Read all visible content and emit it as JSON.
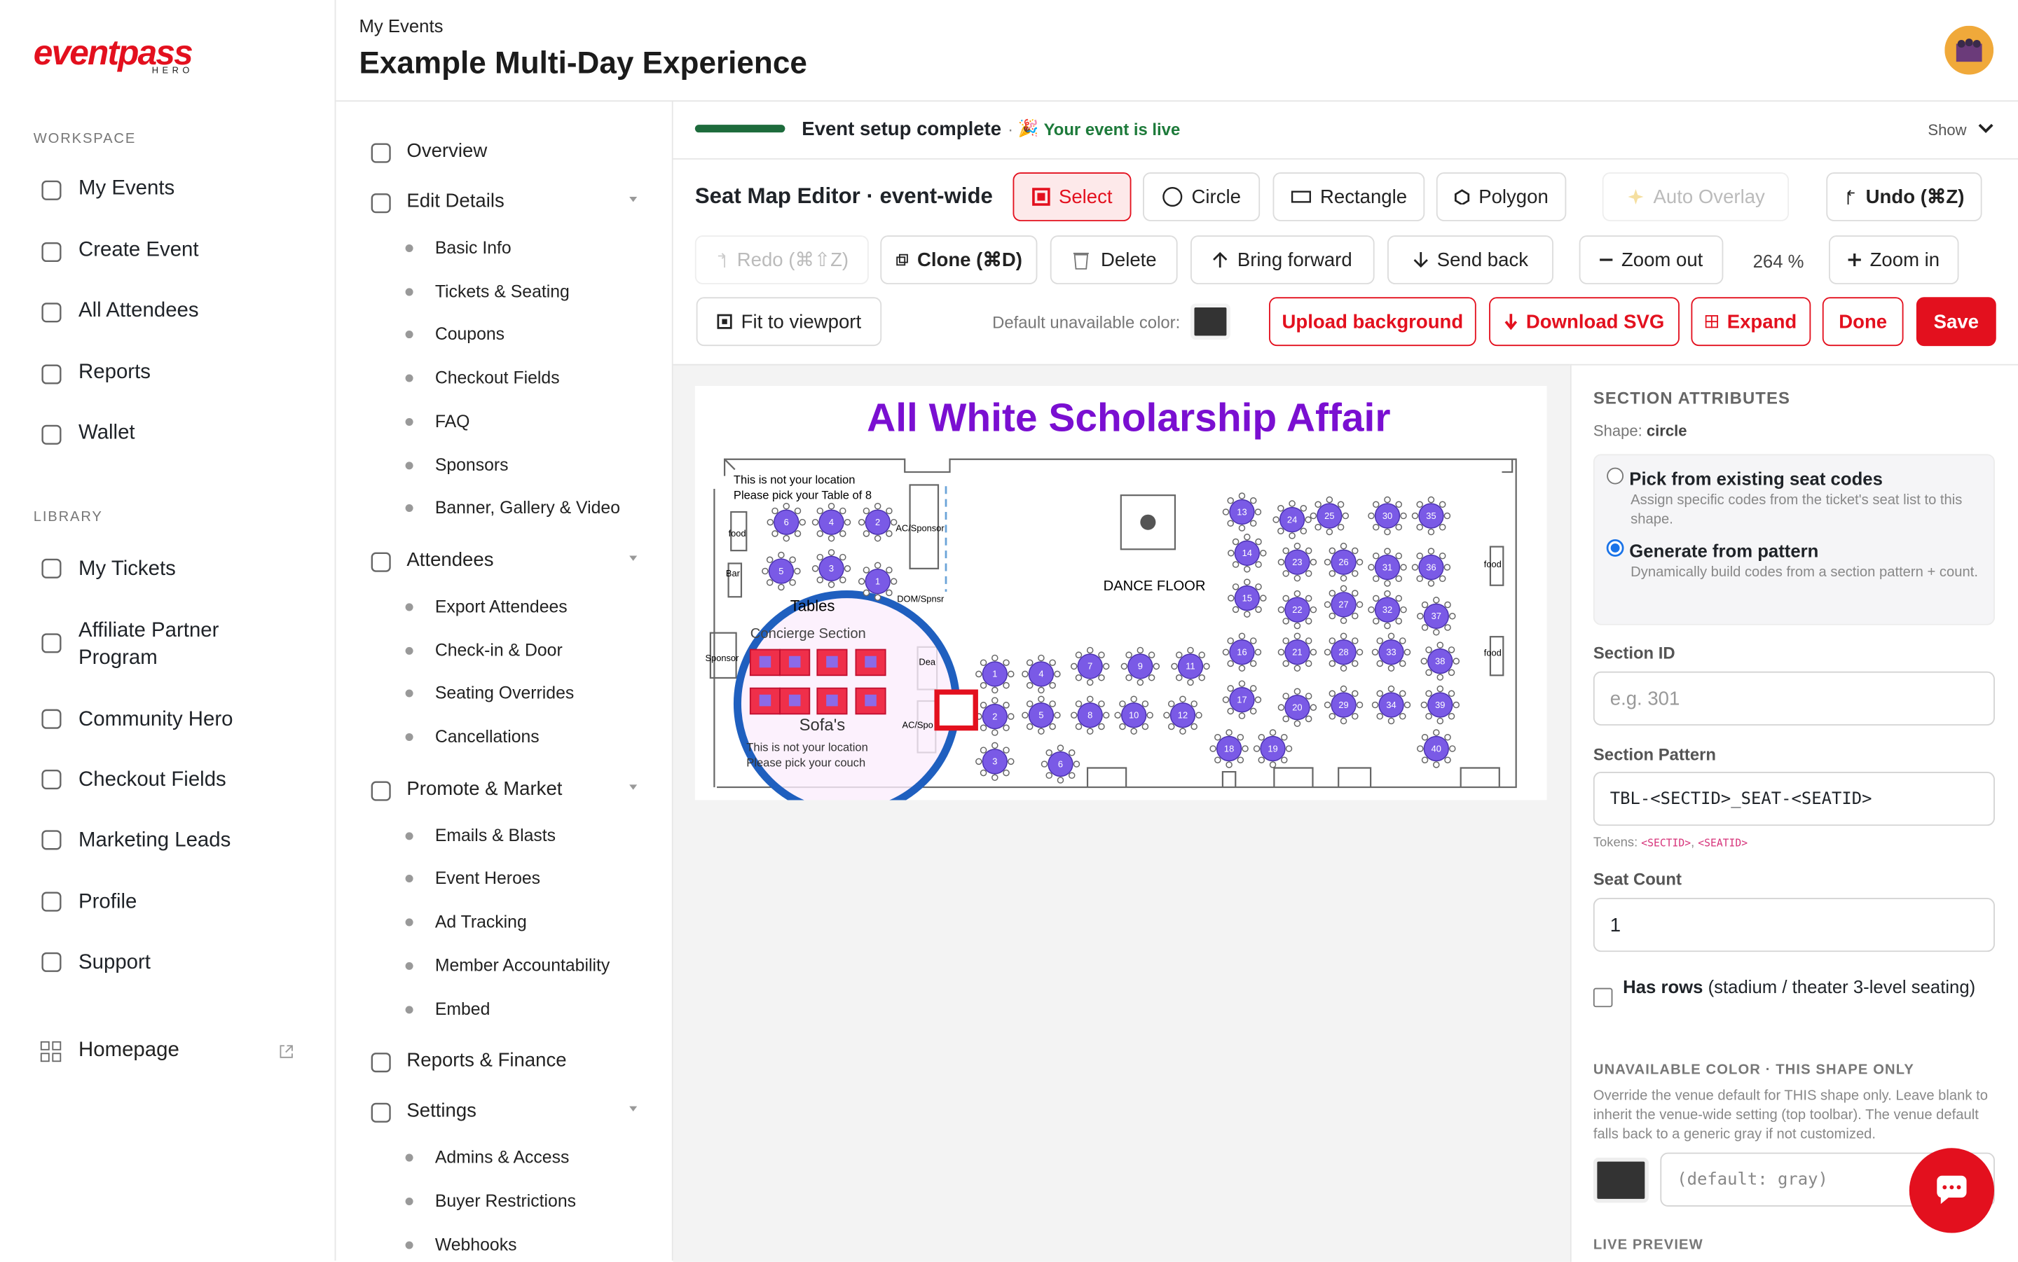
{
  "sidebar": {
    "logo": "eventpass",
    "logo_sub": "HERO",
    "workspace_label": "WORKSPACE",
    "workspace": [
      "My Events",
      "Create Event",
      "All Attendees",
      "Reports",
      "Wallet"
    ],
    "library_label": "LIBRARY",
    "library": [
      "My Tickets",
      "Affiliate Partner Program",
      "Community Hero",
      "Checkout Fields",
      "Marketing Leads",
      "Profile",
      "Support"
    ],
    "homepage": "Homepage"
  },
  "header": {
    "breadcrumb": "My Events",
    "title": "Example Multi-Day Experience"
  },
  "subnav": [
    {
      "label": "Overview",
      "items": []
    },
    {
      "label": "Edit Details",
      "items": [
        "Basic Info",
        "Tickets & Seating",
        "Coupons",
        "Checkout Fields",
        "FAQ",
        "Sponsors",
        "Banner, Gallery & Video"
      ]
    },
    {
      "label": "Attendees",
      "items": [
        "Export Attendees",
        "Check-in & Door",
        "Seating Overrides",
        "Cancellations"
      ]
    },
    {
      "label": "Promote & Market",
      "items": [
        "Emails & Blasts",
        "Event Heroes",
        "Ad Tracking",
        "Member Accountability",
        "Embed"
      ]
    },
    {
      "label": "Reports & Finance",
      "items": []
    },
    {
      "label": "Settings",
      "items": [
        "Admins & Access",
        "Buyer Restrictions",
        "Webhooks"
      ]
    }
  ],
  "status": {
    "progress_label": "Event setup complete",
    "live_prefix": "·",
    "live_icon": "🎉",
    "live": "Your event is live",
    "show": "Show"
  },
  "toolbar": {
    "title": "Seat Map Editor · event-wide",
    "select": "Select",
    "circle": "Circle",
    "rectangle": "Rectangle",
    "polygon": "Polygon",
    "auto_overlay": "Auto Overlay",
    "undo": "Undo (⌘Z)",
    "redo": "Redo (⌘⇧Z)",
    "clone": "Clone (⌘D)",
    "delete": "Delete",
    "bring_forward": "Bring forward",
    "send_back": "Send back",
    "zoom_out": "Zoom out",
    "zoom": "264 %",
    "zoom_in": "Zoom in",
    "fit": "Fit to viewport",
    "unavailable_label": "Default unavailable color:",
    "upload": "Upload background",
    "download": "Download SVG",
    "expand": "Expand",
    "done": "Done",
    "save": "Save"
  },
  "map": {
    "title": "All White Scholarship Affair",
    "note1": "This is not your location",
    "note2": "Please pick your Table of 8",
    "food": "food",
    "bar": "Bar",
    "ac_sponsor": "AC/Sponsor",
    "dom": "DOM/Spnsr",
    "tables_label": "Tables",
    "concierge": "Concierge Section",
    "sponsor": "Sponsor",
    "sofas": "Sofa's",
    "note3": "This is not your location",
    "note4": "Please pick your couch",
    "dance_floor": "DANCE FLOOR",
    "food_right": "food",
    "food_right2": "food",
    "dea": "Dea",
    "ac_spo": "AC/Spo",
    "tables": [
      6,
      4,
      2,
      5,
      3,
      1,
      1,
      4,
      7,
      9,
      11,
      2,
      5,
      8,
      10,
      12,
      3,
      6,
      13,
      14,
      15,
      16,
      17,
      18,
      19,
      24,
      23,
      22,
      21,
      20,
      25,
      26,
      27,
      28,
      29,
      30,
      31,
      32,
      33,
      34,
      35,
      36,
      37,
      38,
      39,
      40
    ]
  },
  "panel": {
    "heading": "SECTION ATTRIBUTES",
    "shape_label": "Shape:",
    "shape": "circle",
    "option1": "Pick from existing seat codes",
    "option1_desc": "Assign specific codes from the ticket's seat list to this shape.",
    "option2": "Generate from pattern",
    "option2_desc": "Dynamically build codes from a section pattern + count.",
    "section_id_label": "Section ID",
    "section_id_placeholder": "e.g. 301",
    "pattern_label": "Section Pattern",
    "pattern": "TBL-<SECTID>_SEAT-<SEATID>",
    "tokens_label": "Tokens:",
    "tokens": [
      "<SECTID>",
      "<SEATID>"
    ],
    "token_separator": ",",
    "seat_count_label": "Seat Count",
    "seat_count": "1",
    "has_rows": "Has rows",
    "has_rows_desc": "(stadium / theater 3-level seating)",
    "unavailable_heading": "UNAVAILABLE COLOR · THIS SHAPE ONLY",
    "unavailable_desc": "Override the venue default for THIS shape only. Leave blank to inherit the venue-wide setting (top toolbar). The venue default falls back to a generic gray if not customized.",
    "unavailable_placeholder": "(default: gray)",
    "live_preview": "LIVE PREVIEW"
  }
}
